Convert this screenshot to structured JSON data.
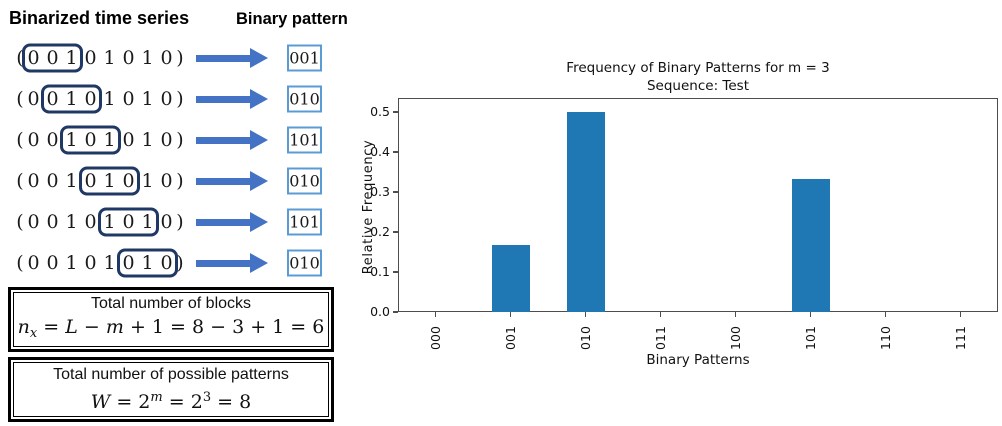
{
  "left_panel": {
    "header_series": "Binarized time series",
    "header_pattern": "Binary pattern",
    "open_paren": "(",
    "close_paren": ")",
    "series_digits": [
      "0",
      "0",
      "1",
      "0",
      "1",
      "0",
      "1",
      "0"
    ],
    "rows": [
      {
        "window_start": 0,
        "pattern": "001"
      },
      {
        "window_start": 1,
        "pattern": "010"
      },
      {
        "window_start": 2,
        "pattern": "101"
      },
      {
        "window_start": 3,
        "pattern": "010"
      },
      {
        "window_start": 4,
        "pattern": "101"
      },
      {
        "window_start": 5,
        "pattern": "010"
      }
    ],
    "blocks_box": {
      "title": "Total number of blocks",
      "formula": [
        {
          "t": "n",
          "s": "i"
        },
        {
          "t": "x",
          "s": "isub"
        },
        {
          "t": " = ",
          "s": "n"
        },
        {
          "t": "L",
          "s": "i"
        },
        {
          "t": " − ",
          "s": "n"
        },
        {
          "t": "m",
          "s": "i"
        },
        {
          "t": " + 1 = 8 − 3 + 1 = 6",
          "s": "n"
        }
      ]
    },
    "patterns_box": {
      "title": "Total number of possible patterns",
      "formula": [
        {
          "t": "W",
          "s": "i"
        },
        {
          "t": " = 2",
          "s": "n"
        },
        {
          "t": "m",
          "s": "isup"
        },
        {
          "t": " = 2",
          "s": "n"
        },
        {
          "t": "3",
          "s": "sup"
        },
        {
          "t": " = 8",
          "s": "n"
        }
      ]
    },
    "colors": {
      "window_border": "#1f3864",
      "arrow": "#4472c4",
      "pattern_box_border": "#5b9bd5"
    }
  },
  "chart_data": {
    "type": "bar",
    "title": "Frequency of Binary Patterns for m = 3",
    "subtitle": "Sequence: Test",
    "xlabel": "Binary Patterns",
    "ylabel": "Relative Frequency",
    "categories": [
      "000",
      "001",
      "010",
      "011",
      "100",
      "101",
      "110",
      "111"
    ],
    "values": [
      0,
      0.1667,
      0.5,
      0,
      0,
      0.3333,
      0,
      0
    ],
    "yticks": [
      0.0,
      0.1,
      0.2,
      0.3,
      0.4,
      0.5
    ],
    "ylim": [
      0,
      0.535
    ],
    "bar_color": "#1f77b4",
    "grid": false,
    "legend_position": "none"
  }
}
